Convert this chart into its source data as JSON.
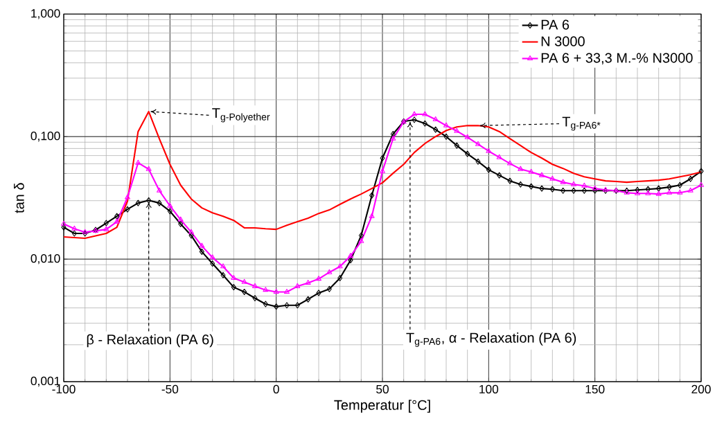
{
  "chart_data": {
    "type": "line",
    "xlabel": "Temperatur [°C]",
    "ylabel": "tan δ",
    "x": [
      -100,
      -95,
      -90,
      -85,
      -80,
      -75,
      -70,
      -65,
      -60,
      -55,
      -50,
      -45,
      -40,
      -35,
      -30,
      -25,
      -20,
      -15,
      -10,
      -5,
      0,
      5,
      10,
      15,
      20,
      25,
      30,
      35,
      40,
      45,
      50,
      55,
      60,
      65,
      70,
      75,
      80,
      85,
      90,
      95,
      100,
      105,
      110,
      115,
      120,
      125,
      130,
      135,
      140,
      145,
      150,
      155,
      160,
      165,
      170,
      175,
      180,
      185,
      190,
      195,
      200
    ],
    "series": [
      {
        "name": "PA 6",
        "color": "#000000",
        "marker": "diamond",
        "values": [
          0.0182,
          0.0162,
          0.0162,
          0.0173,
          0.0197,
          0.0224,
          0.0255,
          0.0287,
          0.0302,
          0.0287,
          0.0246,
          0.0194,
          0.0156,
          0.0115,
          0.0092,
          0.0074,
          0.0059,
          0.0054,
          0.0048,
          0.0043,
          0.0041,
          0.0042,
          0.0042,
          0.0047,
          0.0053,
          0.0057,
          0.007,
          0.0098,
          0.0156,
          0.0331,
          0.0668,
          0.105,
          0.133,
          0.137,
          0.128,
          0.114,
          0.1,
          0.0845,
          0.0723,
          0.0626,
          0.0536,
          0.0483,
          0.0435,
          0.0407,
          0.0392,
          0.0377,
          0.0372,
          0.0362,
          0.0362,
          0.0362,
          0.0362,
          0.0362,
          0.0362,
          0.0362,
          0.0367,
          0.0372,
          0.0377,
          0.0387,
          0.0402,
          0.0452,
          0.0522
        ]
      },
      {
        "name": "N 3000",
        "color": "#ff0000",
        "x": [
          -100,
          -90,
          -80,
          -75,
          -70,
          -65,
          -60,
          -55,
          -50,
          -45,
          -40,
          -35,
          -30,
          -25,
          -20,
          -15,
          -10,
          -5,
          0,
          5,
          10,
          15,
          20,
          25,
          30,
          35,
          40,
          45,
          50,
          55,
          60,
          65,
          70,
          75,
          80,
          85,
          90,
          95,
          100,
          105,
          110,
          115,
          120,
          125,
          130,
          135,
          140,
          145,
          150,
          155,
          160,
          165,
          170,
          175,
          180,
          185,
          190,
          195,
          200
        ],
        "values": [
          0.0152,
          0.0148,
          0.0162,
          0.0182,
          0.0298,
          0.11,
          0.16,
          0.096,
          0.0594,
          0.0402,
          0.031,
          0.0262,
          0.0239,
          0.0224,
          0.0207,
          0.018,
          0.018,
          0.0177,
          0.0175,
          0.0189,
          0.0202,
          0.0216,
          0.0236,
          0.0252,
          0.028,
          0.031,
          0.034,
          0.0377,
          0.042,
          0.0502,
          0.0594,
          0.0742,
          0.0878,
          0.1,
          0.112,
          0.12,
          0.123,
          0.123,
          0.12,
          0.11,
          0.0962,
          0.0845,
          0.0742,
          0.0668,
          0.0594,
          0.055,
          0.0502,
          0.047,
          0.0452,
          0.0435,
          0.043,
          0.0424,
          0.043,
          0.0435,
          0.0441,
          0.0452,
          0.047,
          0.0489,
          0.0515
        ]
      },
      {
        "name": "PA 6 + 33,3 M.-% N3000",
        "color": "#ff00ff",
        "marker": "triangle",
        "values": [
          0.0194,
          0.0177,
          0.0166,
          0.017,
          0.0175,
          0.0202,
          0.0319,
          0.061,
          0.0542,
          0.0362,
          0.0272,
          0.021,
          0.0166,
          0.0128,
          0.0103,
          0.0087,
          0.007,
          0.0065,
          0.006,
          0.0056,
          0.0054,
          0.0054,
          0.006,
          0.0064,
          0.0069,
          0.0078,
          0.0087,
          0.0106,
          0.014,
          0.0224,
          0.0522,
          0.0962,
          0.132,
          0.152,
          0.152,
          0.138,
          0.123,
          0.111,
          0.0987,
          0.0867,
          0.0761,
          0.0677,
          0.0603,
          0.0543,
          0.0515,
          0.0483,
          0.0452,
          0.0424,
          0.0407,
          0.0397,
          0.0377,
          0.0367,
          0.0362,
          0.0348,
          0.0344,
          0.0344,
          0.034,
          0.0348,
          0.0348,
          0.0362,
          0.0402
        ]
      }
    ],
    "xlim": [
      -100,
      200
    ],
    "xticks": [
      -100,
      -50,
      0,
      50,
      100,
      150,
      200
    ],
    "ylim": [
      0.001,
      1
    ],
    "log": "y",
    "yticks": [
      {
        "value": 0.001,
        "label": "0,001"
      },
      {
        "value": 0.01,
        "label": "0,010"
      },
      {
        "value": 0.1,
        "label": "0,100"
      },
      {
        "value": 1,
        "label": "1,000"
      }
    ],
    "grid": true,
    "legend": "top right",
    "line_style": "solid",
    "annotations": [
      {
        "text": "\\text{T}_{\\text{g-Polyether}}",
        "x": -60,
        "y": 0.16
      },
      {
        "text": "\\text{T}_{\\text{g-PA6*}}",
        "x": 95,
        "y": 0.123
      },
      {
        "text": "\\text{β - Relaxation (PA 6)}",
        "x": -60,
        "y": 0.0302
      },
      {
        "text": "\\text{T}_{\\text{g-PA6}}\\text{, α - Relaxation (PA 6)}",
        "x": 63,
        "y": 0.137
      }
    ]
  }
}
